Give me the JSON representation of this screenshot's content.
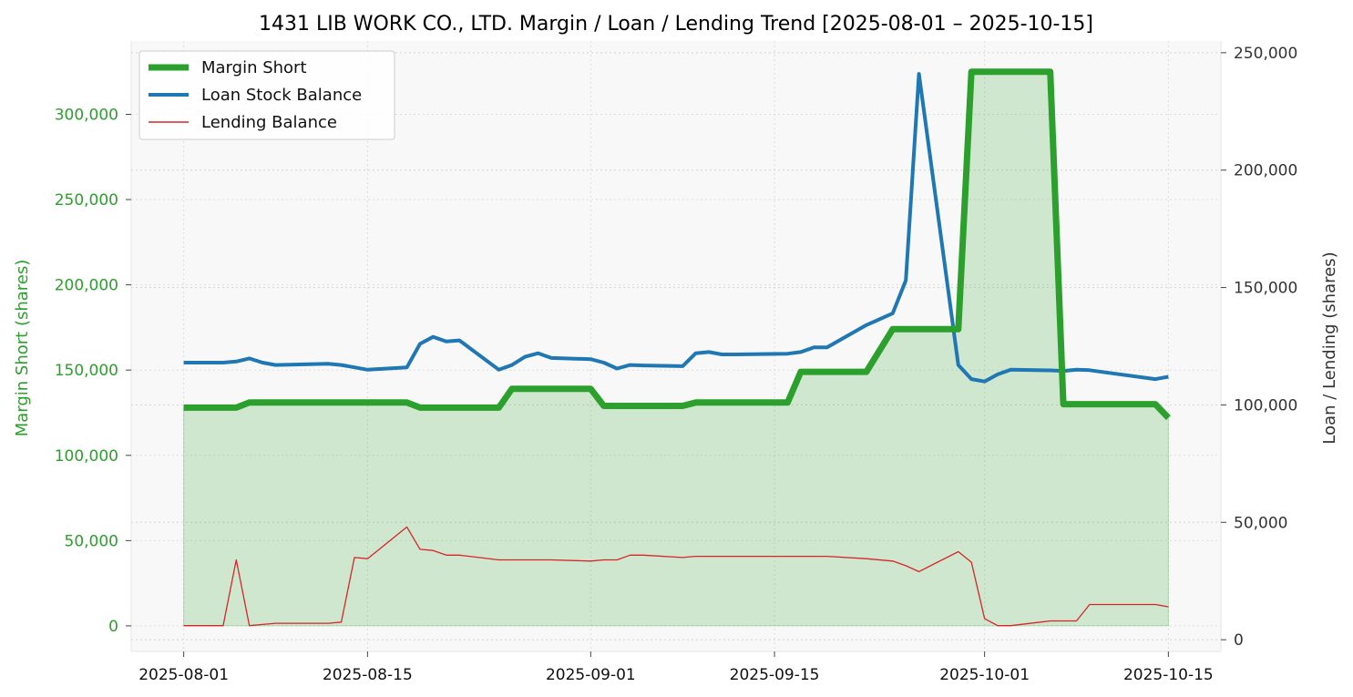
{
  "chart_data": {
    "type": "line",
    "title": "1431 LIB WORK CO., LTD. Margin / Loan / Lending Trend [2025-08-01 – 2025-10-15]",
    "ylabel_left": "Margin Short (shares)",
    "ylabel_right": "Loan / Lending (shares)",
    "x_ticks": [
      "2025-08-01",
      "2025-08-15",
      "2025-09-01",
      "2025-09-15",
      "2025-10-01",
      "2025-10-15"
    ],
    "y_left_ticks": [
      0,
      50000,
      100000,
      150000,
      200000,
      250000,
      300000
    ],
    "y_left_tick_labels": [
      "0",
      "50,000",
      "100,000",
      "150,000",
      "200,000",
      "250,000",
      "300,000"
    ],
    "y_right_ticks": [
      0,
      50000,
      100000,
      150000,
      200000,
      250000
    ],
    "y_right_tick_labels": [
      "0",
      "50,000",
      "100,000",
      "150,000",
      "200,000",
      "250,000"
    ],
    "ylim_left": [
      -15000,
      343000
    ],
    "ylim_right": [
      -5000,
      255000
    ],
    "xlim": [
      "2025-07-28",
      "2025-10-19"
    ],
    "grid": true,
    "legend_position": "top-left",
    "series": [
      {
        "name": "Margin Short",
        "axis": "left",
        "color": "#2ca02c",
        "fill": true,
        "x": [
          "2025-08-01",
          "2025-08-04",
          "2025-08-05",
          "2025-08-06",
          "2025-08-07",
          "2025-08-08",
          "2025-08-12",
          "2025-08-13",
          "2025-08-14",
          "2025-08-15",
          "2025-08-18",
          "2025-08-19",
          "2025-08-20",
          "2025-08-21",
          "2025-08-22",
          "2025-08-25",
          "2025-08-26",
          "2025-08-27",
          "2025-08-28",
          "2025-08-29",
          "2025-09-01",
          "2025-09-02",
          "2025-09-03",
          "2025-09-04",
          "2025-09-05",
          "2025-09-08",
          "2025-09-09",
          "2025-09-10",
          "2025-09-11",
          "2025-09-12",
          "2025-09-16",
          "2025-09-17",
          "2025-09-18",
          "2025-09-19",
          "2025-09-22",
          "2025-09-24",
          "2025-09-25",
          "2025-09-26",
          "2025-09-29",
          "2025-09-30",
          "2025-10-01",
          "2025-10-02",
          "2025-10-03",
          "2025-10-06",
          "2025-10-07",
          "2025-10-08",
          "2025-10-09",
          "2025-10-10",
          "2025-10-14",
          "2025-10-15"
        ],
        "values": [
          128000,
          128000,
          128000,
          131000,
          131000,
          131000,
          131000,
          131000,
          131000,
          131000,
          131000,
          128000,
          128000,
          128000,
          128000,
          128000,
          139000,
          139000,
          139000,
          139000,
          139000,
          129000,
          129000,
          129000,
          129000,
          129000,
          131000,
          131000,
          131000,
          131000,
          131000,
          149000,
          149000,
          149000,
          149000,
          174000,
          174000,
          174000,
          174000,
          325000,
          325000,
          325000,
          325000,
          325000,
          130000,
          130000,
          130000,
          130000,
          130000,
          122000
        ]
      },
      {
        "name": "Loan Stock Balance",
        "axis": "right",
        "color": "#1f77b4",
        "x": [
          "2025-08-01",
          "2025-08-04",
          "2025-08-05",
          "2025-08-06",
          "2025-08-07",
          "2025-08-08",
          "2025-08-12",
          "2025-08-13",
          "2025-08-14",
          "2025-08-15",
          "2025-08-18",
          "2025-08-19",
          "2025-08-20",
          "2025-08-21",
          "2025-08-22",
          "2025-08-25",
          "2025-08-26",
          "2025-08-27",
          "2025-08-28",
          "2025-08-29",
          "2025-09-01",
          "2025-09-02",
          "2025-09-03",
          "2025-09-04",
          "2025-09-05",
          "2025-09-08",
          "2025-09-09",
          "2025-09-10",
          "2025-09-11",
          "2025-09-12",
          "2025-09-16",
          "2025-09-17",
          "2025-09-18",
          "2025-09-19",
          "2025-09-22",
          "2025-09-24",
          "2025-09-25",
          "2025-09-26",
          "2025-09-29",
          "2025-09-30",
          "2025-10-01",
          "2025-10-02",
          "2025-10-03",
          "2025-10-06",
          "2025-10-07",
          "2025-10-08",
          "2025-10-09",
          "2025-10-10",
          "2025-10-14",
          "2025-10-15"
        ],
        "values": [
          118000,
          118000,
          118500,
          119800,
          118000,
          117000,
          117500,
          117000,
          116000,
          115000,
          116000,
          126000,
          129000,
          127000,
          127500,
          115000,
          117000,
          120500,
          122000,
          120000,
          119500,
          118000,
          115500,
          117000,
          116800,
          116500,
          122000,
          122500,
          121500,
          121500,
          121800,
          122500,
          124500,
          124500,
          134000,
          139000,
          153000,
          241000,
          117000,
          111000,
          110000,
          113000,
          115000,
          114700,
          114500,
          115000,
          114800,
          114000,
          111000,
          112000
        ]
      },
      {
        "name": "Lending Balance",
        "axis": "right",
        "color": "#d62728",
        "x": [
          "2025-08-01",
          "2025-08-04",
          "2025-08-05",
          "2025-08-06",
          "2025-08-07",
          "2025-08-08",
          "2025-08-12",
          "2025-08-13",
          "2025-08-14",
          "2025-08-15",
          "2025-08-18",
          "2025-08-19",
          "2025-08-20",
          "2025-08-21",
          "2025-08-22",
          "2025-08-25",
          "2025-08-26",
          "2025-08-27",
          "2025-08-28",
          "2025-08-29",
          "2025-09-01",
          "2025-09-02",
          "2025-09-03",
          "2025-09-04",
          "2025-09-05",
          "2025-09-08",
          "2025-09-09",
          "2025-09-10",
          "2025-09-11",
          "2025-09-12",
          "2025-09-16",
          "2025-09-17",
          "2025-09-18",
          "2025-09-19",
          "2025-09-22",
          "2025-09-24",
          "2025-09-25",
          "2025-09-26",
          "2025-09-29",
          "2025-09-30",
          "2025-10-01",
          "2025-10-02",
          "2025-10-03",
          "2025-10-06",
          "2025-10-07",
          "2025-10-08",
          "2025-10-09",
          "2025-10-10",
          "2025-10-14",
          "2025-10-15"
        ],
        "values": [
          6000,
          6000,
          34000,
          6000,
          6500,
          7000,
          7000,
          7500,
          35000,
          34500,
          48000,
          38500,
          38000,
          36000,
          36000,
          34000,
          34000,
          34000,
          34000,
          34000,
          33500,
          34000,
          34000,
          36000,
          36000,
          35000,
          35500,
          35500,
          35500,
          35500,
          35500,
          35500,
          35500,
          35500,
          34500,
          33500,
          31500,
          29000,
          37500,
          33000,
          9000,
          6000,
          6000,
          8000,
          8000,
          8000,
          15000,
          15000,
          15000,
          14000
        ]
      }
    ]
  }
}
